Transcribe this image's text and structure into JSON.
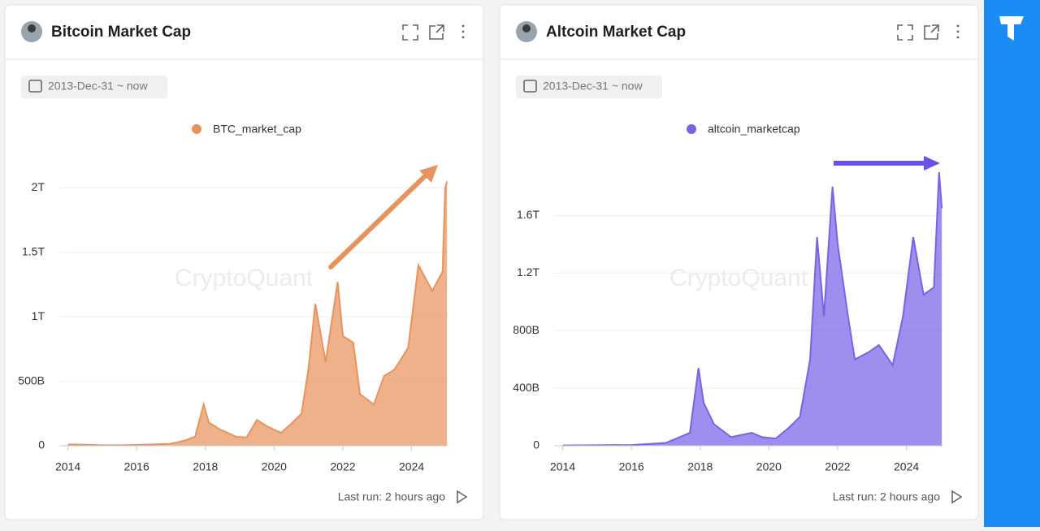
{
  "panels": [
    {
      "title": "Bitcoin Market Cap",
      "date_range": "2013-Dec-31 ~ now",
      "watermark": "CryptoQuant",
      "last_run": "Last run: 2 hours ago"
    },
    {
      "title": "Altcoin Market Cap",
      "date_range": "2013-Dec-31 ~ now",
      "watermark": "CryptoQuant",
      "last_run": "Last run: 2 hours ago"
    }
  ],
  "chart_data": [
    {
      "type": "area",
      "x": [
        2014.0,
        2014.5,
        2015.0,
        2015.5,
        2016.0,
        2016.5,
        2017.0,
        2017.4,
        2017.7,
        2017.95,
        2018.1,
        2018.4,
        2018.9,
        2019.2,
        2019.5,
        2019.8,
        2020.2,
        2020.5,
        2020.8,
        2021.0,
        2021.2,
        2021.5,
        2021.85,
        2022.0,
        2022.3,
        2022.5,
        2022.9,
        2023.2,
        2023.5,
        2023.9,
        2024.2,
        2024.6,
        2024.9,
        2024.98,
        2025.03
      ],
      "series": [
        {
          "name": "BTC_market_cap",
          "color": "#e8935c",
          "values": [
            10,
            8,
            4,
            4,
            6,
            10,
            16,
            40,
            70,
            320,
            180,
            130,
            70,
            65,
            200,
            150,
            100,
            170,
            250,
            600,
            1100,
            650,
            1270,
            850,
            800,
            400,
            320,
            540,
            590,
            760,
            1400,
            1200,
            1350,
            2000,
            2050
          ]
        }
      ],
      "xlim": [
        2013.75,
        2025.05
      ],
      "xticks": [
        2014,
        2016,
        2018,
        2020,
        2022,
        2024
      ],
      "ylim": [
        0,
        2210
      ],
      "yticks": [
        0,
        {
          "value": 500,
          "label": "500B"
        },
        {
          "value": 1000,
          "label": "1T"
        },
        {
          "value": 1500,
          "label": "1.5T"
        },
        {
          "value": 2000,
          "label": "2T"
        }
      ],
      "grid": true
    },
    {
      "type": "area",
      "x": [
        2014.0,
        2016.0,
        2017.0,
        2017.4,
        2017.7,
        2017.95,
        2018.1,
        2018.4,
        2018.9,
        2019.5,
        2019.8,
        2020.2,
        2020.6,
        2020.9,
        2021.2,
        2021.4,
        2021.6,
        2021.85,
        2022.0,
        2022.3,
        2022.5,
        2022.9,
        2023.2,
        2023.6,
        2023.9,
        2024.2,
        2024.5,
        2024.8,
        2024.95,
        2025.03
      ],
      "series": [
        {
          "name": "altcoin_marketcap",
          "color": "#7a62e6",
          "values": [
            2,
            5,
            20,
            60,
            90,
            540,
            300,
            150,
            60,
            90,
            60,
            50,
            130,
            200,
            600,
            1450,
            900,
            1800,
            1400,
            900,
            600,
            650,
            700,
            560,
            900,
            1450,
            1050,
            1100,
            1900,
            1650
          ]
        }
      ],
      "xlim": [
        2013.75,
        2025.05
      ],
      "xticks": [
        2014,
        2016,
        2018,
        2020,
        2022,
        2024
      ],
      "ylim": [
        0,
        1980
      ],
      "yticks": [
        0,
        {
          "value": 400,
          "label": "400B"
        },
        {
          "value": 800,
          "label": "800B"
        },
        {
          "value": 1200,
          "label": "1.2T"
        },
        {
          "value": 1600,
          "label": "1.6T"
        }
      ],
      "grid": true
    }
  ]
}
